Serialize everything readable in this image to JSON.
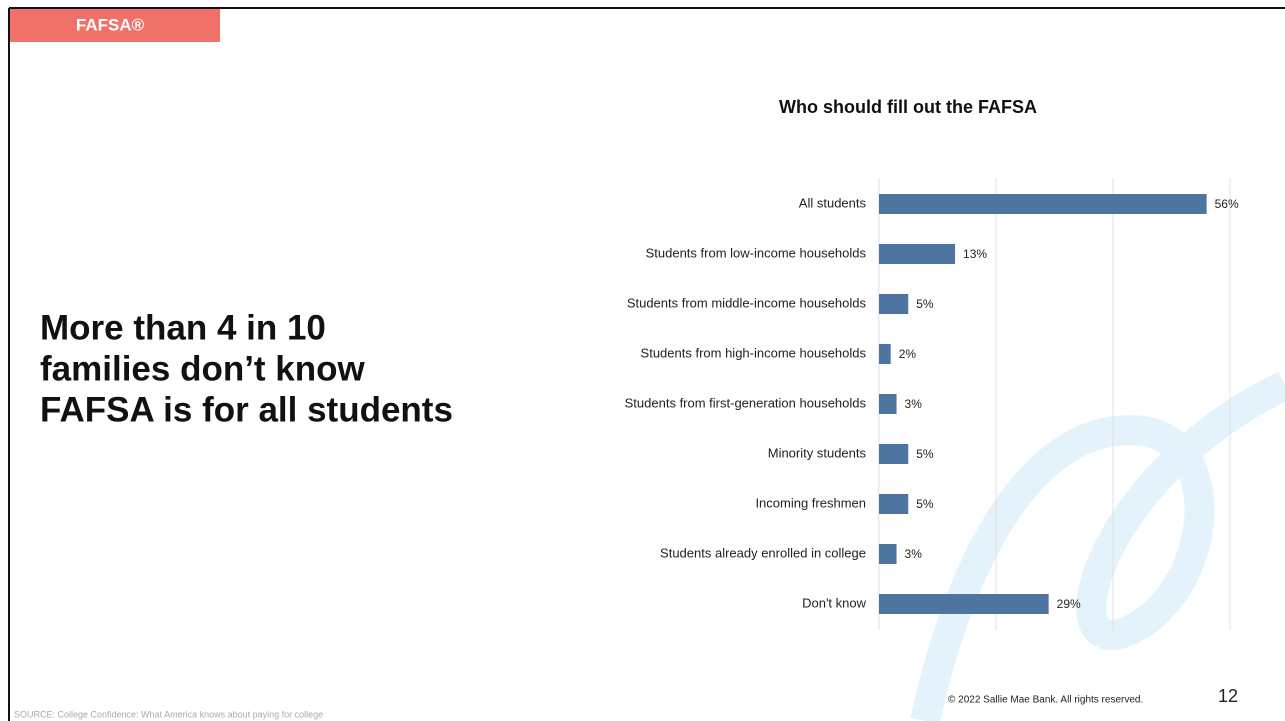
{
  "slide": {
    "tag": "FAFSA®",
    "headline": [
      "More than 4 in 10",
      "families don’t know",
      "FAFSA is for all students"
    ],
    "source": "SOURCE: College Confidence: What America knows about paying for college",
    "copyright": "© 2022 Sallie Mae Bank. All rights reserved.",
    "page_number": "12"
  },
  "chart_data": {
    "type": "bar",
    "orientation": "horizontal",
    "title": "Who should fill out the FAFSA",
    "categories": [
      "All students",
      "Students from low-income households",
      "Students from middle-income households",
      "Students from high-income households",
      "Students from first-generation households",
      "Minority students",
      "Incoming freshmen",
      "Students already enrolled in college",
      "Don't know"
    ],
    "values": [
      56,
      13,
      5,
      2,
      3,
      5,
      5,
      3,
      29
    ],
    "value_labels": [
      "56%",
      "13%",
      "5%",
      "2%",
      "3%",
      "5%",
      "5%",
      "3%",
      "29%"
    ],
    "color": "#4e74a0",
    "xlim": [
      0,
      60
    ],
    "xticks": [
      0,
      20,
      40,
      60
    ],
    "grid": true
  }
}
